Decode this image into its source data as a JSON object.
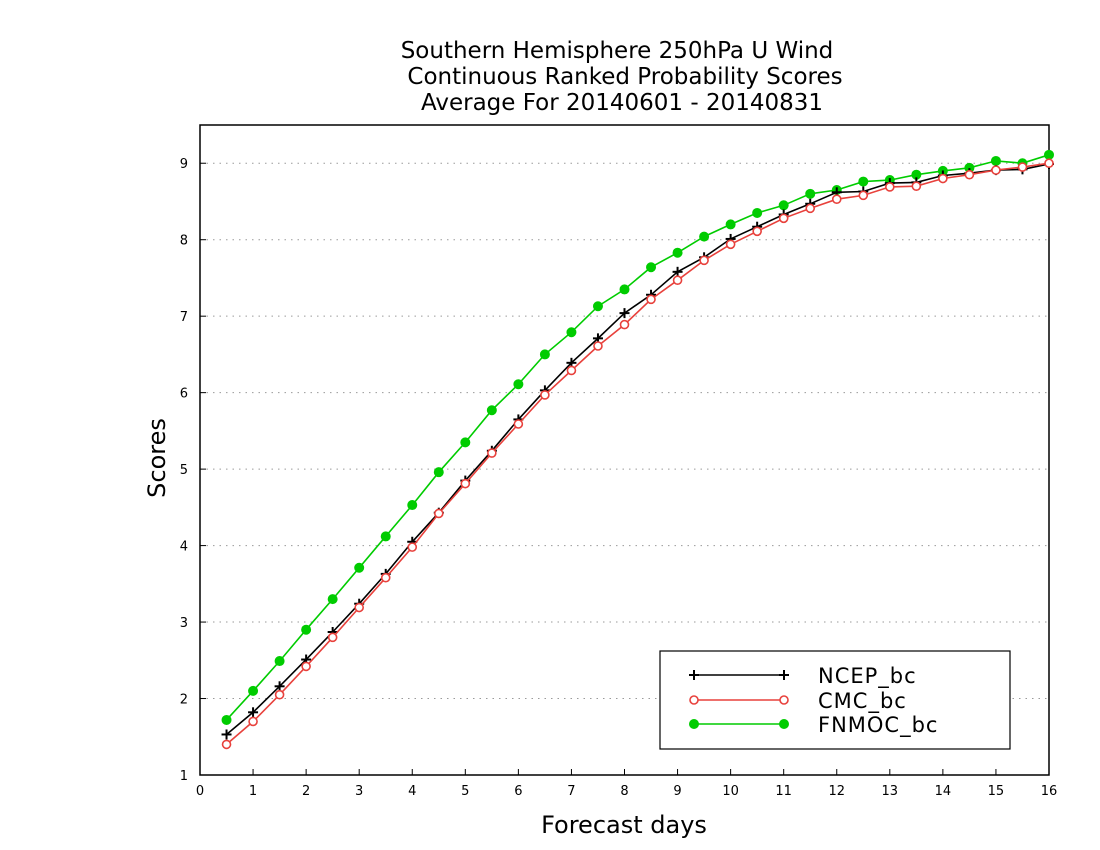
{
  "chart_data": {
    "type": "line",
    "title": [
      "Southern Hemisphere 250hPa U Wind",
      "Continuous Ranked Probability Scores",
      "Average For 20140601 - 20140831"
    ],
    "xlabel": "Forecast days",
    "ylabel": "Scores",
    "xlim": [
      0,
      16
    ],
    "ylim": [
      1,
      9.5
    ],
    "xticks": [
      0,
      1,
      2,
      3,
      4,
      5,
      6,
      7,
      8,
      9,
      10,
      11,
      12,
      13,
      14,
      15,
      16
    ],
    "yticks": [
      1,
      2,
      3,
      4,
      5,
      6,
      7,
      8,
      9
    ],
    "grid": "horizontal dotted",
    "legend_position": "bottom-right",
    "x": [
      0.5,
      1,
      1.5,
      2,
      2.5,
      3,
      3.5,
      4,
      4.5,
      5,
      5.5,
      6,
      6.5,
      7,
      7.5,
      8,
      8.5,
      9,
      9.5,
      10,
      10.5,
      11,
      11.5,
      12,
      12.5,
      13,
      13.5,
      14,
      14.5,
      15,
      15.5,
      16
    ],
    "series": [
      {
        "name": "NCEP_bc",
        "color": "#000000",
        "marker": "plus",
        "values": [
          1.53,
          1.82,
          2.16,
          2.51,
          2.87,
          3.24,
          3.63,
          4.05,
          4.43,
          4.85,
          5.24,
          5.65,
          6.03,
          6.39,
          6.71,
          7.04,
          7.28,
          7.58,
          7.77,
          8.01,
          8.17,
          8.33,
          8.47,
          8.62,
          8.63,
          8.74,
          8.75,
          8.84,
          8.87,
          8.91,
          8.92,
          8.99
        ]
      },
      {
        "name": "CMC_bc",
        "color": "#e8413c",
        "marker": "open-circle",
        "values": [
          1.4,
          1.7,
          2.05,
          2.42,
          2.8,
          3.19,
          3.58,
          3.98,
          4.42,
          4.81,
          5.21,
          5.59,
          5.97,
          6.29,
          6.61,
          6.89,
          7.22,
          7.47,
          7.73,
          7.94,
          8.11,
          8.28,
          8.41,
          8.53,
          8.58,
          8.69,
          8.7,
          8.8,
          8.85,
          8.91,
          8.95,
          9.0
        ]
      },
      {
        "name": "FNMOC_bc",
        "color": "#00cc00",
        "marker": "filled-circle",
        "values": [
          1.72,
          2.1,
          2.49,
          2.9,
          3.3,
          3.71,
          4.12,
          4.53,
          4.96,
          5.35,
          5.77,
          6.11,
          6.5,
          6.79,
          7.13,
          7.35,
          7.64,
          7.83,
          8.04,
          8.2,
          8.35,
          8.45,
          8.6,
          8.65,
          8.76,
          8.78,
          8.85,
          8.9,
          8.94,
          9.03,
          9.0,
          9.11
        ]
      }
    ]
  }
}
